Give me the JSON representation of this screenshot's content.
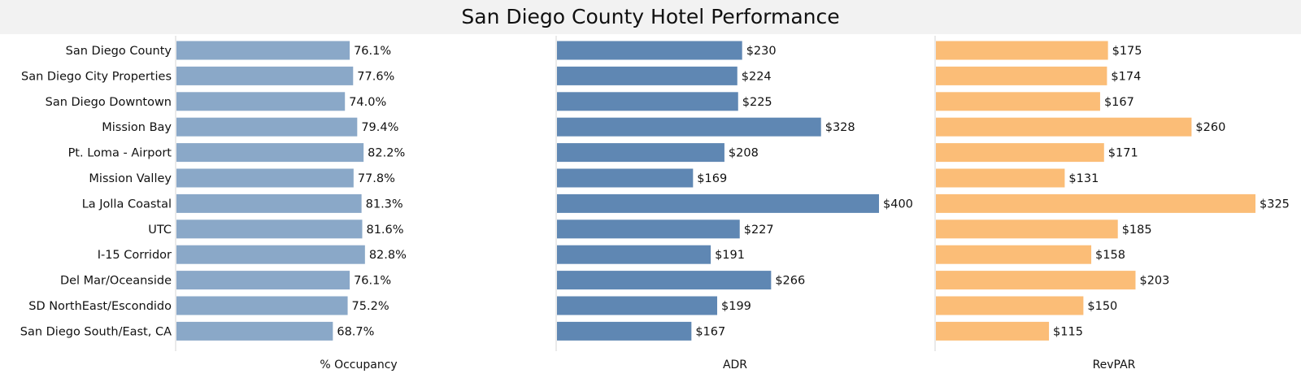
{
  "chart_data": {
    "type": "bar",
    "title": "San Diego County Hotel Performance",
    "categories": [
      "San Diego County",
      "San Diego City Properties",
      "San Diego Downtown",
      "Mission Bay",
      "Pt. Loma - Airport",
      "Mission Valley",
      "La Jolla Coastal",
      "UTC",
      "I-15 Corridor",
      "Del Mar/Oceanside",
      "SD NorthEast/Escondido",
      "San Diego South/East, CA"
    ],
    "series": [
      {
        "name": "% Occupancy",
        "values": [
          76.1,
          77.6,
          74.0,
          79.4,
          82.2,
          77.8,
          81.3,
          81.6,
          82.8,
          76.1,
          75.2,
          68.7
        ],
        "labels": [
          "76.1%",
          "77.6%",
          "74.0%",
          "79.4%",
          "82.2%",
          "77.8%",
          "81.3%",
          "81.6%",
          "82.8%",
          "76.1%",
          "75.2%",
          "68.7%"
        ],
        "color": "#8aa8c8",
        "xlim": [
          0,
          100
        ]
      },
      {
        "name": "ADR",
        "values": [
          230,
          224,
          225,
          328,
          208,
          169,
          400,
          227,
          191,
          266,
          199,
          167
        ],
        "labels": [
          "$230",
          "$224",
          "$225",
          "$328",
          "$208",
          "$169",
          "$400",
          "$227",
          "$191",
          "$266",
          "$199",
          "$167"
        ],
        "color": "#5f87b3",
        "xlim": [
          0,
          400
        ]
      },
      {
        "name": "RevPAR",
        "values": [
          175,
          174,
          167,
          260,
          171,
          131,
          325,
          185,
          158,
          203,
          150,
          115
        ],
        "labels": [
          "$175",
          "$174",
          "$167",
          "$260",
          "$171",
          "$131",
          "$325",
          "$185",
          "$158",
          "$203",
          "$150",
          "$115"
        ],
        "color": "#fbbd77",
        "xlim": [
          0,
          325
        ]
      }
    ],
    "orientation": "horizontal",
    "grid": false,
    "legend": "none"
  }
}
